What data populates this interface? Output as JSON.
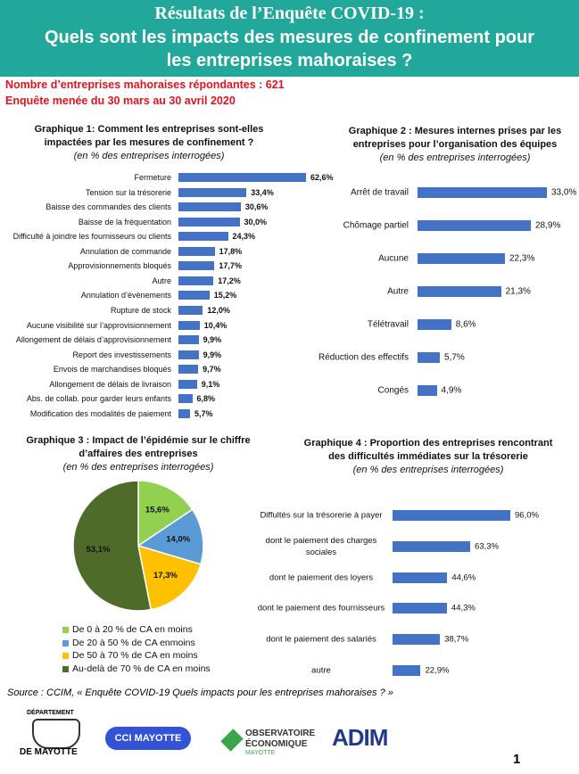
{
  "header": {
    "title_1": "Résultats de l’Enquête COVID-19 :",
    "title_2": "Quels sont les impacts des mesures de confinement pour les entreprises mahoraises ?",
    "note_1": "Nombre d’entreprises mahoraises répondantes : 621",
    "note_2": "Enquête menée du 30 mars au 30 avril 2020"
  },
  "chart_data": [
    {
      "type": "bar",
      "orientation": "horizontal",
      "title": "Graphique 1: Comment les entreprises sont-elles impactées par les mesures de confinement ?",
      "subtitle": "(en % des entreprises interrogées)",
      "color": "#4472c4",
      "categories": [
        "Fermeture",
        "Tension sur la trésorerie",
        "Baisse des commandes des clients",
        "Baisse de la fréquentation",
        "Difficulté à joindre les fournisseurs ou clients",
        "Annulation de commande",
        "Approvisionnements bloqués",
        "Autre",
        "Annulation d’évènements",
        "Rupture de stock",
        "Aucune visibilité sur l’approvisionnement",
        "Allongement de délais d’approvisionnement",
        "Report des investissements",
        "Envois de marchandises bloqués",
        "Allongement de délais de livraison",
        "Abs. de collab. pour garder leurs enfants",
        "Modification des modalités de paiement"
      ],
      "values": [
        62.6,
        33.4,
        30.6,
        30.0,
        24.3,
        17.8,
        17.7,
        17.2,
        15.2,
        12.0,
        10.4,
        9.9,
        9.9,
        9.7,
        9.1,
        6.8,
        5.7
      ],
      "value_labels": [
        "62,6%",
        "33,4%",
        "30,6%",
        "30,0%",
        "24,3%",
        "17,8%",
        "17,7%",
        "17,2%",
        "15,2%",
        "12,0%",
        "10,4%",
        "9,9%",
        "9,9%",
        "9,7%",
        "9,1%",
        "6,8%",
        "5,7%"
      ]
    },
    {
      "type": "bar",
      "orientation": "horizontal",
      "title": "Graphique 2 :  Mesures internes prises par les entreprises pour l’organisation des équipes",
      "subtitle": "(en % des entreprises interrogées)",
      "color": "#4472c4",
      "categories": [
        "Arrêt de travail",
        "Chômage partiel",
        "Aucune",
        "Autre",
        "Télétravail",
        "Réduction des effectifs",
        "Congés"
      ],
      "values": [
        33.0,
        28.9,
        22.3,
        21.3,
        8.6,
        5.7,
        4.9
      ],
      "value_labels": [
        "33,0%",
        "28,9%",
        "22,3%",
        "21,3%",
        "8,6%",
        "5,7%",
        "4,9%"
      ]
    },
    {
      "type": "pie",
      "title": "Graphique 3 : Impact de l’épidémie sur le chiffre d’affaires des entreprises",
      "subtitle": "(en % des entreprises interrogées)",
      "categories": [
        "De 0 à 20 % de CA en moins",
        "De 20 à 50 % de CA enmoins",
        "De 50 à 70 % de CA en moins",
        "Au-delà de 70 % de CA en moins"
      ],
      "values": [
        15.6,
        14.0,
        17.3,
        53.1
      ],
      "value_labels": [
        "15,6%",
        "14,0%",
        "17,3%",
        "53,1%"
      ],
      "colors": [
        "#92d050",
        "#5b9bd5",
        "#ffc000",
        "#4f6b2a"
      ]
    },
    {
      "type": "bar",
      "orientation": "horizontal",
      "title": "Graphique 4 : Proportion des entreprises rencontrant des difficultés immédiates sur la trésorerie",
      "subtitle": "(en % des entreprises interrogées)",
      "color": "#4472c4",
      "categories": [
        "Diffultés sur la trésorerie à payer",
        "dont le paiement des charges sociales",
        "dont le paiement des loyers",
        "dont le paiement des fournisseurs",
        "dont le paiement des salariés",
        "autre"
      ],
      "values": [
        96.0,
        63.3,
        44.6,
        44.3,
        38.7,
        22.9
      ],
      "value_labels": [
        "96,0%",
        "63,3%",
        "44,6%",
        "44,3%",
        "38,7%",
        "22,9%"
      ]
    }
  ],
  "footer": {
    "source": "Source :  CCIM, « Enquête COVID-19 Quels impacts pour les entreprises mahoraises ? »",
    "logo_1_top": "DÉPARTEMENT",
    "logo_1_bottom": "DE MAYOTTE",
    "logo_2": "CCI MAYOTTE",
    "logo_3_a": "OBSERVATOIRE",
    "logo_3_b": "ÉCONOMIQUE",
    "logo_3_c": "MAYOTTE",
    "logo_4": "ADIM",
    "page": "1"
  }
}
